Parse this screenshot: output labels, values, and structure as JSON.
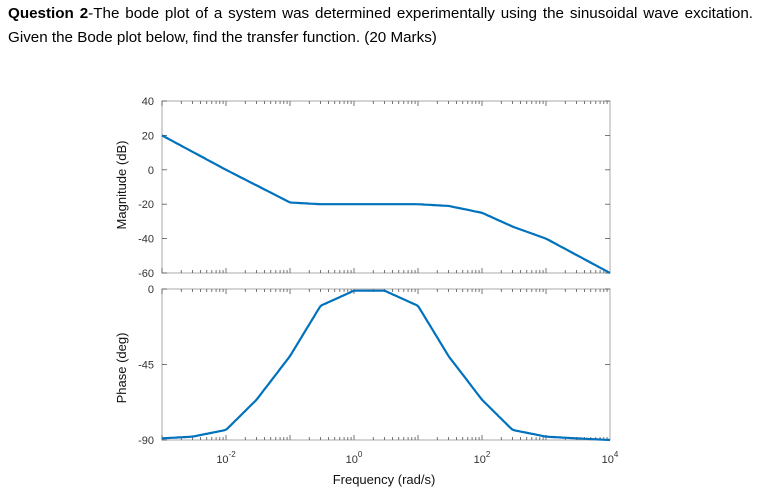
{
  "question": {
    "label": "Question 2",
    "text": "-The bode plot of a system was determined experimentally using the sinusoidal wave excitation. Given the Bode plot below, find the transfer function. (20 Marks)"
  },
  "chart_data": [
    {
      "type": "line",
      "title": "",
      "xlabel": "",
      "ylabel": "Magnitude (dB)",
      "xscale": "log",
      "xlim": [
        0.001,
        10000
      ],
      "ylim": [
        -60,
        40
      ],
      "yticks": [
        "40",
        "20",
        "0",
        "-20",
        "-40",
        "-60"
      ],
      "grid": false,
      "color": "#0072bd",
      "series": [
        {
          "x": [
            0.001,
            0.01,
            0.1,
            0.3,
            1,
            10,
            30,
            100,
            300,
            1000,
            10000
          ],
          "y": [
            20,
            0,
            -19,
            -20,
            -20,
            -20,
            -21,
            -25,
            -33,
            -40,
            -60
          ]
        }
      ]
    },
    {
      "type": "line",
      "title": "",
      "xlabel": "Frequency (rad/s)",
      "ylabel": "Phase (deg)",
      "xscale": "log",
      "xlim": [
        0.001,
        10000
      ],
      "ylim": [
        -90,
        0
      ],
      "xticks": [
        {
          "base": "10",
          "exp": "-2"
        },
        {
          "base": "10",
          "exp": "0"
        },
        {
          "base": "10",
          "exp": "2"
        },
        {
          "base": "10",
          "exp": "4"
        }
      ],
      "yticks": [
        "0",
        "-45",
        "-90"
      ],
      "grid": false,
      "color": "#0072bd",
      "series": [
        {
          "x": [
            0.001,
            0.003,
            0.01,
            0.03,
            0.1,
            0.3,
            1,
            3,
            10,
            30,
            100,
            300,
            1000,
            3000,
            10000
          ],
          "y": [
            -89,
            -88,
            -84,
            -66,
            -40,
            -10,
            -1,
            -1,
            -10,
            -40,
            -66,
            -84,
            -88,
            -89,
            -90
          ]
        }
      ]
    }
  ]
}
